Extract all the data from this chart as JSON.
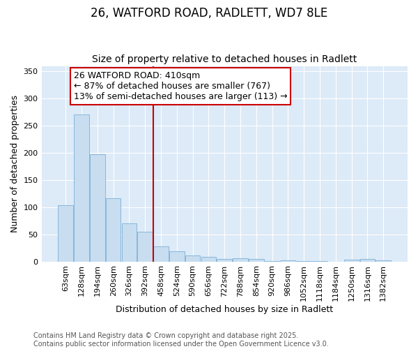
{
  "title1": "26, WATFORD ROAD, RADLETT, WD7 8LE",
  "title2": "Size of property relative to detached houses in Radlett",
  "xlabel": "Distribution of detached houses by size in Radlett",
  "ylabel": "Number of detached properties",
  "categories": [
    "63sqm",
    "128sqm",
    "194sqm",
    "260sqm",
    "326sqm",
    "392sqm",
    "458sqm",
    "524sqm",
    "590sqm",
    "656sqm",
    "722sqm",
    "788sqm",
    "854sqm",
    "920sqm",
    "986sqm",
    "1052sqm",
    "1118sqm",
    "1184sqm",
    "1250sqm",
    "1316sqm",
    "1382sqm"
  ],
  "values": [
    103,
    271,
    197,
    116,
    70,
    55,
    28,
    19,
    11,
    9,
    5,
    6,
    5,
    1,
    2,
    1,
    1,
    0,
    3,
    4,
    2
  ],
  "bar_color": "#c8ddf0",
  "bar_edge_color": "#7ab0d8",
  "vline_x": 5.5,
  "vline_color": "#cc0000",
  "annotation_text": "26 WATFORD ROAD: 410sqm\n← 87% of detached houses are smaller (767)\n13% of semi-detached houses are larger (113) →",
  "annotation_box_color": "#ffffff",
  "annotation_box_edge": "#cc0000",
  "ylim": [
    0,
    360
  ],
  "yticks": [
    0,
    50,
    100,
    150,
    200,
    250,
    300,
    350
  ],
  "background_color": "#ddeaf7",
  "grid_color": "#ffffff",
  "footer": "Contains HM Land Registry data © Crown copyright and database right 2025.\nContains public sector information licensed under the Open Government Licence v3.0.",
  "title_fontsize": 12,
  "subtitle_fontsize": 10,
  "label_fontsize": 9,
  "tick_fontsize": 8,
  "footer_fontsize": 7,
  "annot_fontsize": 9
}
